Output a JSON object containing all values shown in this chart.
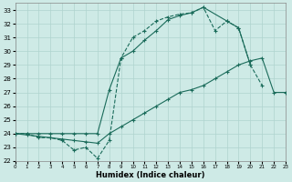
{
  "xlabel": "Humidex (Indice chaleur)",
  "xlim": [
    0,
    23
  ],
  "ylim": [
    22,
    33.5
  ],
  "xticks": [
    0,
    1,
    2,
    3,
    4,
    5,
    6,
    7,
    8,
    9,
    10,
    11,
    12,
    13,
    14,
    15,
    16,
    17,
    18,
    19,
    20,
    21,
    22,
    23
  ],
  "yticks": [
    22,
    23,
    24,
    25,
    26,
    27,
    28,
    29,
    30,
    31,
    32,
    33
  ],
  "background_color": "#ceeae6",
  "grid_color": "#afd4cf",
  "line_color": "#1a6b5a",
  "hours": [
    0,
    1,
    2,
    3,
    4,
    5,
    6,
    7,
    8,
    9,
    10,
    11,
    12,
    13,
    14,
    15,
    16,
    17,
    18,
    19,
    20,
    21,
    22,
    23
  ],
  "curve_jagged": [
    24.0,
    24.0,
    23.7,
    23.7,
    23.5,
    22.8,
    23.0,
    22.2,
    23.5,
    29.5,
    31.0,
    31.5,
    32.2,
    32.5,
    32.7,
    32.8,
    33.2,
    31.5,
    32.2,
    31.7,
    29.0,
    27.5,
    null,
    null
  ],
  "curve_top": [
    24.0,
    24.0,
    24.0,
    24.0,
    24.0,
    24.0,
    24.0,
    24.0,
    27.2,
    29.5,
    30.0,
    30.8,
    31.5,
    32.3,
    32.6,
    32.8,
    33.2,
    null,
    32.2,
    31.7,
    29.0,
    null,
    null,
    null
  ],
  "curve_bottom": [
    24.0,
    23.9,
    23.8,
    23.7,
    23.6,
    23.5,
    23.4,
    23.3,
    24.0,
    24.5,
    25.0,
    25.5,
    26.0,
    26.5,
    27.0,
    27.2,
    27.5,
    28.0,
    28.5,
    29.0,
    29.3,
    29.5,
    27.0,
    27.0
  ]
}
